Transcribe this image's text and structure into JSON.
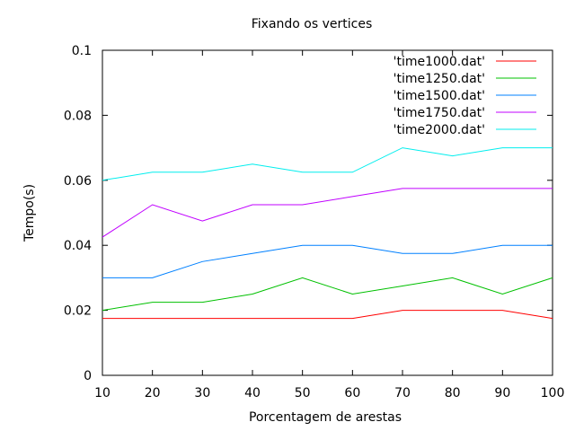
{
  "chart_data": {
    "type": "line",
    "title": "Fixando os vertices",
    "xlabel": "Porcentagem de arestas",
    "ylabel": "Tempo(s)",
    "xlim": [
      10,
      100
    ],
    "ylim": [
      0,
      0.1
    ],
    "xticks": [
      "10",
      "20",
      "30",
      "40",
      "50",
      "60",
      "70",
      "80",
      "90",
      "100"
    ],
    "yticks": [
      "0",
      "0.02",
      "0.04",
      "0.06",
      "0.08",
      "0.1"
    ],
    "legend_position": "top-right",
    "grid": false,
    "x": [
      10,
      20,
      30,
      40,
      50,
      60,
      70,
      80,
      90,
      100
    ],
    "series": [
      {
        "name": "'time1000.dat'",
        "color": "#ff0000",
        "values": [
          0.0175,
          0.0175,
          0.0175,
          0.0175,
          0.0175,
          0.0175,
          0.02,
          0.02,
          0.02,
          0.0175
        ]
      },
      {
        "name": "'time1250.dat'",
        "color": "#00c000",
        "values": [
          0.02,
          0.0225,
          0.0225,
          0.025,
          0.03,
          0.025,
          0.0275,
          0.03,
          0.025,
          0.03
        ]
      },
      {
        "name": "'time1500.dat'",
        "color": "#0080ff",
        "values": [
          0.03,
          0.03,
          0.035,
          0.0375,
          0.04,
          0.04,
          0.0375,
          0.0375,
          0.04,
          0.04
        ]
      },
      {
        "name": "'time1750.dat'",
        "color": "#c000ff",
        "values": [
          0.0425,
          0.0525,
          0.0475,
          0.0525,
          0.0525,
          0.055,
          0.0575,
          0.0575,
          0.0575,
          0.0575
        ]
      },
      {
        "name": "'time2000.dat'",
        "color": "#00eeee",
        "values": [
          0.06,
          0.0625,
          0.0625,
          0.065,
          0.0625,
          0.0625,
          0.07,
          0.0675,
          0.07,
          0.07
        ]
      }
    ]
  }
}
